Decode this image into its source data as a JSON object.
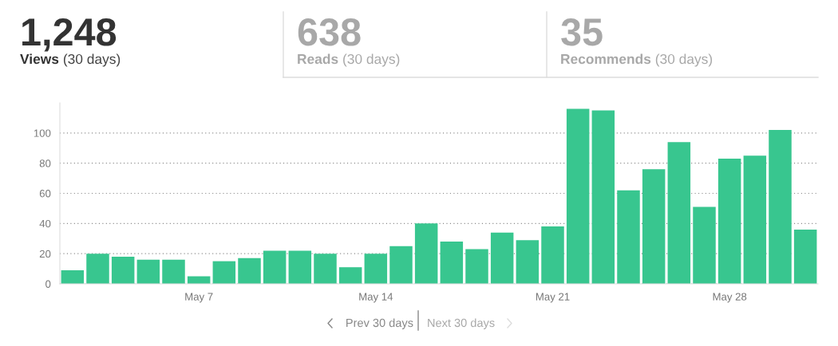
{
  "chart_data": {
    "type": "bar",
    "categories": [
      null,
      null,
      null,
      null,
      null,
      "May 7",
      null,
      null,
      null,
      null,
      null,
      null,
      "May 14",
      null,
      null,
      null,
      null,
      null,
      null,
      "May 21",
      null,
      null,
      null,
      null,
      null,
      null,
      "May 28",
      null,
      null,
      null
    ],
    "values": [
      9,
      20,
      18,
      16,
      16,
      5,
      15,
      17,
      22,
      22,
      20,
      11,
      20,
      25,
      40,
      28,
      23,
      34,
      29,
      38,
      116,
      115,
      62,
      76,
      94,
      51,
      83,
      85,
      102,
      36
    ],
    "color": "#38c68f",
    "ylim": [
      0,
      120
    ],
    "yticks": [
      0,
      20,
      40,
      60,
      80,
      100
    ],
    "grid": "y",
    "legend": false,
    "annotations": [
      "1,248",
      "Views",
      "(30 days)",
      "638",
      "Reads",
      "(30 days)",
      "35",
      "Recommends",
      "(30 days)",
      "Prev 30 days",
      "Next 30 days"
    ]
  }
}
